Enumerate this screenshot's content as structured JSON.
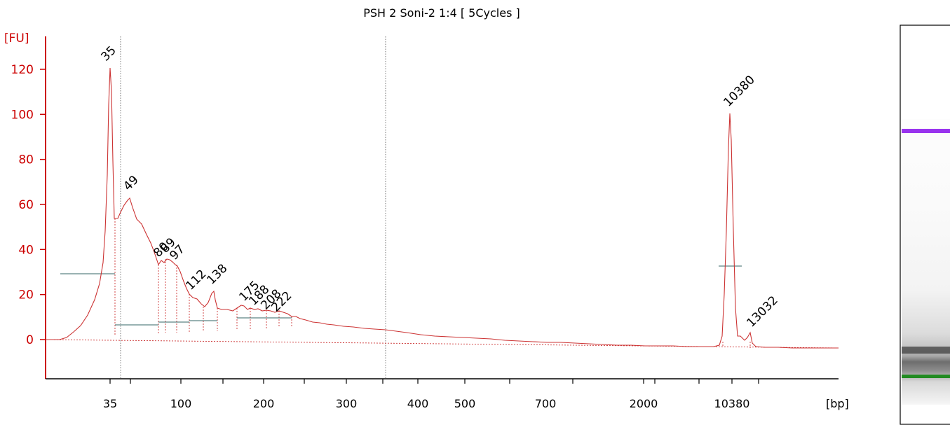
{
  "chart_data": {
    "type": "line",
    "title": "PSH 2 Soni-2 1:4  [ 5Cycles ]",
    "ylabel": "[FU]",
    "xlabel": "[bp]",
    "ylim": [
      -18,
      130
    ],
    "y_ticks": [
      0,
      20,
      40,
      60,
      80,
      100,
      120
    ],
    "x_tick_labels": [
      "35",
      "100",
      "200",
      "300",
      "400",
      "500",
      "700",
      "2000",
      "10380"
    ],
    "grid": false,
    "series_color": "#cc3333",
    "axis_color": "#cc0000",
    "peaks": [
      {
        "label": "35",
        "color": "#228b22",
        "kind": "lower-marker"
      },
      {
        "label": "49",
        "color": "#000000",
        "kind": "peak"
      },
      {
        "label": "80",
        "color": "#000000",
        "kind": "peak"
      },
      {
        "label": "89",
        "color": "#000000",
        "kind": "peak"
      },
      {
        "label": "97",
        "color": "#000000",
        "kind": "peak"
      },
      {
        "label": "112",
        "color": "#000000",
        "kind": "peak"
      },
      {
        "label": "138",
        "color": "#000000",
        "kind": "peak"
      },
      {
        "label": "175",
        "color": "#000000",
        "kind": "peak"
      },
      {
        "label": "188",
        "color": "#000000",
        "kind": "peak"
      },
      {
        "label": "208",
        "color": "#000000",
        "kind": "peak"
      },
      {
        "label": "222",
        "color": "#000000",
        "kind": "peak"
      },
      {
        "label": "10380",
        "color": "#9933ee",
        "kind": "upper-marker"
      },
      {
        "label": "13032",
        "color": "#000000",
        "kind": "peak"
      }
    ],
    "gel_bands": [
      {
        "color": "#9933ee",
        "kind": "upper-marker"
      },
      {
        "color": "#228b22",
        "kind": "lower-marker"
      }
    ]
  }
}
